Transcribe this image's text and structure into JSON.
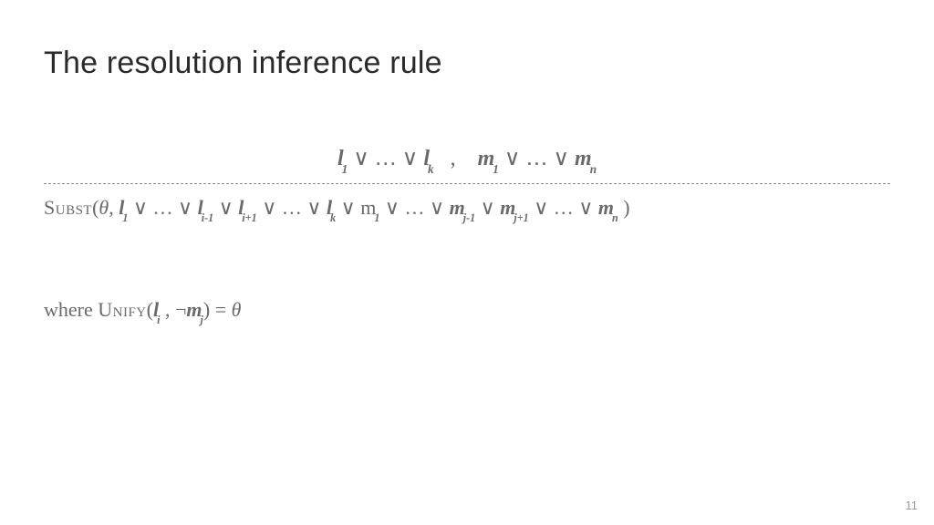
{
  "slide": {
    "title": "The resolution inference rule",
    "page_number": "11"
  },
  "formula": {
    "premise_left": {
      "l1": "l",
      "l1_sub": "1",
      "or1": " ∨ … ∨ ",
      "lk": "l",
      "lk_sub": "k"
    },
    "comma": "   ,    ",
    "premise_right": {
      "m1": "m",
      "m1_sub": "1",
      "or1": " ∨ … ∨ ",
      "mn": "m",
      "mn_sub": "n"
    },
    "subst_label": "Subst",
    "subst_open": "(",
    "theta": "θ",
    "subst_comma": ", ",
    "concl": {
      "l1": "l",
      "l1_sub": "1",
      "or1": " ∨ … ∨ ",
      "lim1": "l",
      "lim1_sub": "i-1",
      "or2": " ∨ ",
      "lip1": "l",
      "lip1_sub": "i+1",
      "or3": " ∨ … ∨ ",
      "lk": "l",
      "lk_sub": "k",
      "or4": " ∨ m",
      "m1_sub": "1",
      "or5": " ∨ … ∨ ",
      "mjm1": "m",
      "mjm1_sub": "j-1",
      "or6": " ∨ ",
      "mjp1": "m",
      "mjp1_sub": "j+1",
      "or7": " ∨ … ∨ ",
      "mn": "m",
      "mn_sub": "n"
    },
    "subst_close": " )",
    "where_label": "where ",
    "unify_label": "Unify",
    "unify_open": "(",
    "unify_li": "l",
    "unify_li_sub": "i",
    "unify_comma": " , ¬",
    "unify_mj": "m",
    "unify_mj_sub": "j",
    "unify_close": ") = ",
    "unify_theta": "θ"
  },
  "style": {
    "title_color": "#2a2a2a",
    "body_color": "#6a6a6a",
    "dash_color": "#8a8a8a",
    "title_fontsize": 34,
    "body_fontsize": 22
  }
}
